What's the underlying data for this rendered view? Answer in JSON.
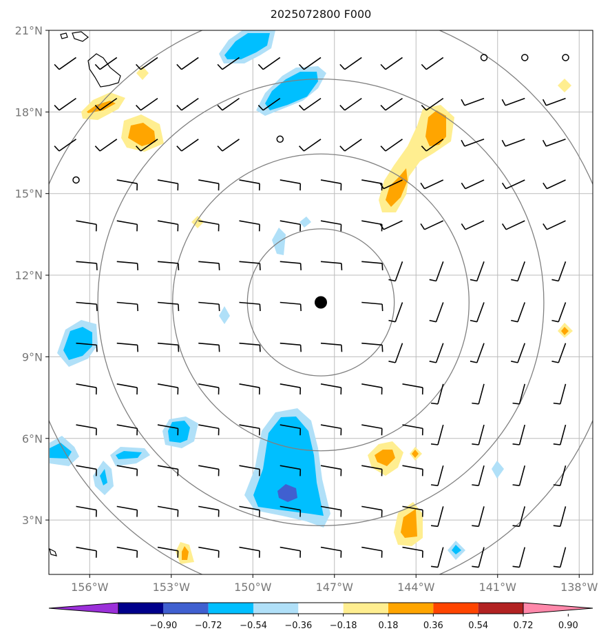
{
  "title": "2025072800 F000",
  "map": {
    "lon_range": [
      -157.5,
      -137.5
    ],
    "lat_range": [
      1,
      21
    ],
    "center": {
      "lon": -147.5,
      "lat": 11
    },
    "ring_radii_deg": [
      2.7,
      5.45,
      8.2,
      10.9
    ],
    "x_ticks": [
      {
        "lon": -156,
        "label": "156°W"
      },
      {
        "lon": -153,
        "label": "153°W"
      },
      {
        "lon": -150,
        "label": "150°W"
      },
      {
        "lon": -147,
        "label": "147°W"
      },
      {
        "lon": -144,
        "label": "144°W"
      },
      {
        "lon": -141,
        "label": "141°W"
      },
      {
        "lon": -138,
        "label": "138°W"
      }
    ],
    "y_ticks": [
      {
        "lat": 3,
        "label": "3°N"
      },
      {
        "lat": 6,
        "label": "6°N"
      },
      {
        "lat": 9,
        "label": "9°N"
      },
      {
        "lat": 12,
        "label": "12°N"
      },
      {
        "lat": 15,
        "label": "15°N"
      },
      {
        "lat": 18,
        "label": "18°N"
      },
      {
        "lat": 21,
        "label": "21°N"
      }
    ],
    "gridlines": true
  },
  "colorbar": {
    "labels": [
      "−0.90",
      "−0.72",
      "−0.54",
      "−0.36",
      "−0.18",
      "0.18",
      "0.36",
      "0.54",
      "0.72",
      "0.90"
    ],
    "colors": [
      "#9b30d9",
      "#00008b",
      "#4060d0",
      "#00bfff",
      "#b0e0f8",
      "#ffffff",
      "#ffee90",
      "#ffa500",
      "#ff4500",
      "#b22222",
      "#ff88aa"
    ]
  },
  "colors": {
    "ring": "#808080",
    "grid": "#bbbbbb",
    "barb": "#000000",
    "center_dot": "#000000"
  }
}
